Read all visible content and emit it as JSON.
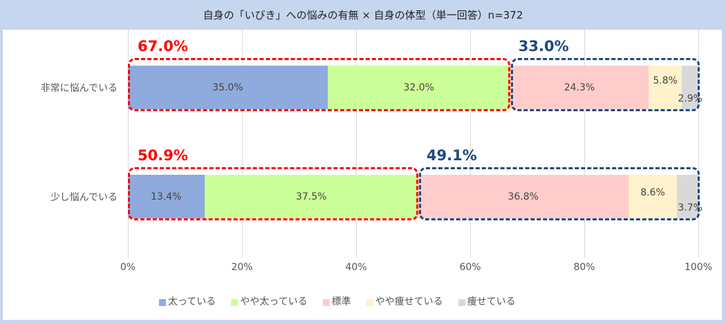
{
  "title": "自身の「いびき」への悩みの有無 × 自身の体型（単一回答）n=372",
  "colors": {
    "太っている": "#8faadc",
    "やや太っている": "#ccff99",
    "標準": "#ffcccc",
    "やや痩せている": "#fff2cc",
    "痩せている": "#d9d9d9",
    "highlight_red": "#ff0000",
    "highlight_navy": "#1f497d"
  },
  "ticks": [
    "0%",
    "20%",
    "40%",
    "60%",
    "80%",
    "100%"
  ],
  "rows": [
    {
      "label": "非常に悩んでいる",
      "labels": [
        "35.0%",
        "32.0%",
        "24.3%",
        "5.8%",
        "2.9%"
      ],
      "sum_heavy": "67.0%",
      "sum_other": "33.0%"
    },
    {
      "label": "少し悩んでいる",
      "labels": [
        "13.4%",
        "37.5%",
        "36.8%",
        "8.6%",
        "3.7%"
      ],
      "sum_heavy": "50.9%",
      "sum_other": "49.1%"
    }
  ],
  "legend": [
    "太っている",
    "やや太っている",
    "標準",
    "やや痩せている",
    "痩せている"
  ],
  "chart_data": {
    "type": "bar",
    "orientation": "horizontal",
    "stacked": "100%",
    "title": "自身の「いびき」への悩みの有無 × 自身の体型（単一回答）n=372",
    "categories": [
      "非常に悩んでいる",
      "少し悩んでいる"
    ],
    "series": [
      {
        "name": "太っている",
        "values": [
          35.0,
          13.4
        ]
      },
      {
        "name": "やや太っている",
        "values": [
          32.0,
          37.5
        ]
      },
      {
        "name": "標準",
        "values": [
          24.3,
          36.8
        ]
      },
      {
        "name": "やや痩せている",
        "values": [
          5.8,
          8.6
        ]
      },
      {
        "name": "痩せている",
        "values": [
          2.9,
          3.7
        ]
      }
    ],
    "annotations": [
      {
        "row": "非常に悩んでいる",
        "group": "太っている+やや太っている",
        "value": "67.0%",
        "color": "#ff0000"
      },
      {
        "row": "非常に悩んでいる",
        "group": "標準+やや痩せている+痩せている",
        "value": "33.0%",
        "color": "#1f497d"
      },
      {
        "row": "少し悩んでいる",
        "group": "太っている+やや太っている",
        "value": "50.9%",
        "color": "#ff0000"
      },
      {
        "row": "少し悩んでいる",
        "group": "標準+やや痩せている+痩せている",
        "value": "49.1%",
        "color": "#1f497d"
      }
    ],
    "xlabel": "",
    "ylabel": "",
    "xlim": [
      0,
      100
    ],
    "xticks": [
      "0%",
      "20%",
      "40%",
      "60%",
      "80%",
      "100%"
    ],
    "grid": true,
    "legend_position": "bottom"
  }
}
